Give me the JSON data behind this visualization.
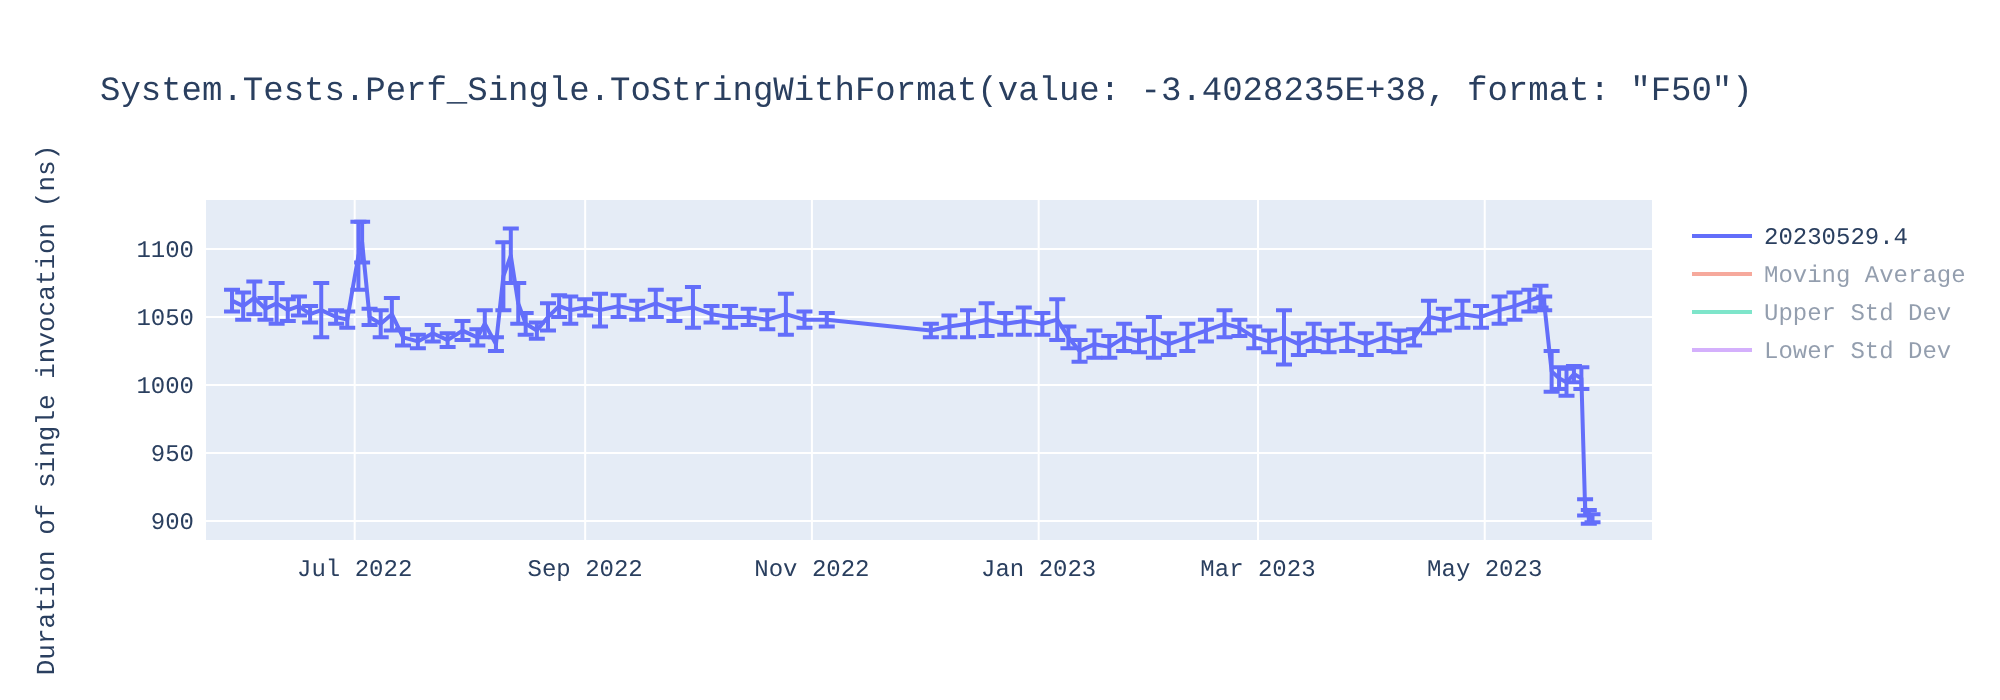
{
  "chart_data": {
    "type": "line",
    "title": "System.Tests.Perf_Single.ToStringWithFormat(value: -3.4028235E+38, format: \"F50\")",
    "ylabel": "Duration of single invocation (ns)",
    "xlim": [
      "2022-05-22",
      "2023-06-15"
    ],
    "xticks": [
      {
        "value": "2022-07-01",
        "label": "Jul 2022"
      },
      {
        "value": "2022-09-01",
        "label": "Sep 2022"
      },
      {
        "value": "2022-11-01",
        "label": "Nov 2022"
      },
      {
        "value": "2023-01-01",
        "label": "Jan 2023"
      },
      {
        "value": "2023-03-01",
        "label": "Mar 2023"
      },
      {
        "value": "2023-05-01",
        "label": "May 2023"
      }
    ],
    "ylim": [
      886,
      1136
    ],
    "yticks": [
      900,
      950,
      1000,
      1050,
      1100
    ],
    "grid": true,
    "legend": "top right",
    "line_style": "solid",
    "series": [
      {
        "name": "20230529.4",
        "color": "#636efa",
        "x": [
          "2022-05-29",
          "2022-06-01",
          "2022-06-04",
          "2022-06-07",
          "2022-06-10",
          "2022-06-13",
          "2022-06-16",
          "2022-06-19",
          "2022-06-22",
          "2022-06-26",
          "2022-06-29",
          "2022-07-02",
          "2022-07-03",
          "2022-07-05",
          "2022-07-08",
          "2022-07-11",
          "2022-07-14",
          "2022-07-18",
          "2022-07-22",
          "2022-07-26",
          "2022-07-30",
          "2022-08-03",
          "2022-08-05",
          "2022-08-08",
          "2022-08-10",
          "2022-08-12",
          "2022-08-14",
          "2022-08-16",
          "2022-08-19",
          "2022-08-22",
          "2022-08-25",
          "2022-08-28",
          "2022-09-01",
          "2022-09-05",
          "2022-09-10",
          "2022-09-15",
          "2022-09-20",
          "2022-09-25",
          "2022-09-30",
          "2022-10-05",
          "2022-10-10",
          "2022-10-15",
          "2022-10-20",
          "2022-10-25",
          "2022-10-30",
          "2022-11-05",
          "2022-12-03",
          "2022-12-08",
          "2022-12-13",
          "2022-12-18",
          "2022-12-23",
          "2022-12-28",
          "2023-01-02",
          "2023-01-06",
          "2023-01-09",
          "2023-01-12",
          "2023-01-16",
          "2023-01-20",
          "2023-01-24",
          "2023-01-28",
          "2023-02-01",
          "2023-02-05",
          "2023-02-10",
          "2023-02-15",
          "2023-02-20",
          "2023-02-24",
          "2023-02-28",
          "2023-03-04",
          "2023-03-08",
          "2023-03-12",
          "2023-03-16",
          "2023-03-20",
          "2023-03-25",
          "2023-03-30",
          "2023-04-04",
          "2023-04-08",
          "2023-04-12",
          "2023-04-16",
          "2023-04-20",
          "2023-04-25",
          "2023-04-30",
          "2023-05-05",
          "2023-05-09",
          "2023-05-13",
          "2023-05-16",
          "2023-05-17",
          "2023-05-19",
          "2023-05-21",
          "2023-05-23",
          "2023-05-25",
          "2023-05-27",
          "2023-05-28",
          "2023-05-29",
          "2023-05-30"
        ],
        "values": [
          1062,
          1058,
          1064,
          1056,
          1060,
          1055,
          1058,
          1052,
          1055,
          1050,
          1048,
          1095,
          1105,
          1050,
          1045,
          1052,
          1035,
          1032,
          1038,
          1033,
          1040,
          1035,
          1045,
          1030,
          1080,
          1095,
          1060,
          1045,
          1040,
          1050,
          1058,
          1055,
          1057,
          1055,
          1058,
          1055,
          1060,
          1055,
          1057,
          1052,
          1050,
          1050,
          1048,
          1052,
          1048,
          1048,
          1040,
          1043,
          1045,
          1048,
          1045,
          1047,
          1045,
          1048,
          1035,
          1025,
          1030,
          1028,
          1035,
          1032,
          1035,
          1030,
          1035,
          1040,
          1045,
          1042,
          1035,
          1032,
          1035,
          1030,
          1035,
          1032,
          1035,
          1030,
          1035,
          1032,
          1035,
          1050,
          1048,
          1052,
          1050,
          1055,
          1058,
          1062,
          1065,
          1060,
          1010,
          1005,
          1002,
          1008,
          1005,
          910,
          903,
          902
        ],
        "errors": [
          8,
          10,
          12,
          8,
          15,
          8,
          7,
          6,
          20,
          5,
          6,
          25,
          15,
          6,
          10,
          12,
          6,
          5,
          6,
          5,
          7,
          6,
          10,
          5,
          25,
          20,
          15,
          8,
          6,
          10,
          8,
          10,
          6,
          12,
          8,
          7,
          10,
          8,
          15,
          6,
          8,
          6,
          7,
          15,
          6,
          5,
          5,
          8,
          10,
          12,
          8,
          10,
          8,
          15,
          8,
          8,
          10,
          8,
          10,
          8,
          15,
          8,
          10,
          8,
          10,
          6,
          8,
          8,
          20,
          8,
          10,
          8,
          10,
          8,
          10,
          8,
          6,
          12,
          8,
          10,
          8,
          10,
          10,
          8,
          8,
          5,
          15,
          8,
          10,
          6,
          8,
          6,
          5,
          3
        ]
      },
      {
        "name": "Moving Average",
        "color": "#ef553b"
      },
      {
        "name": "Upper Std Dev",
        "color": "#00cc96"
      },
      {
        "name": "Lower Std Dev",
        "color": "#ab63fa"
      }
    ]
  }
}
